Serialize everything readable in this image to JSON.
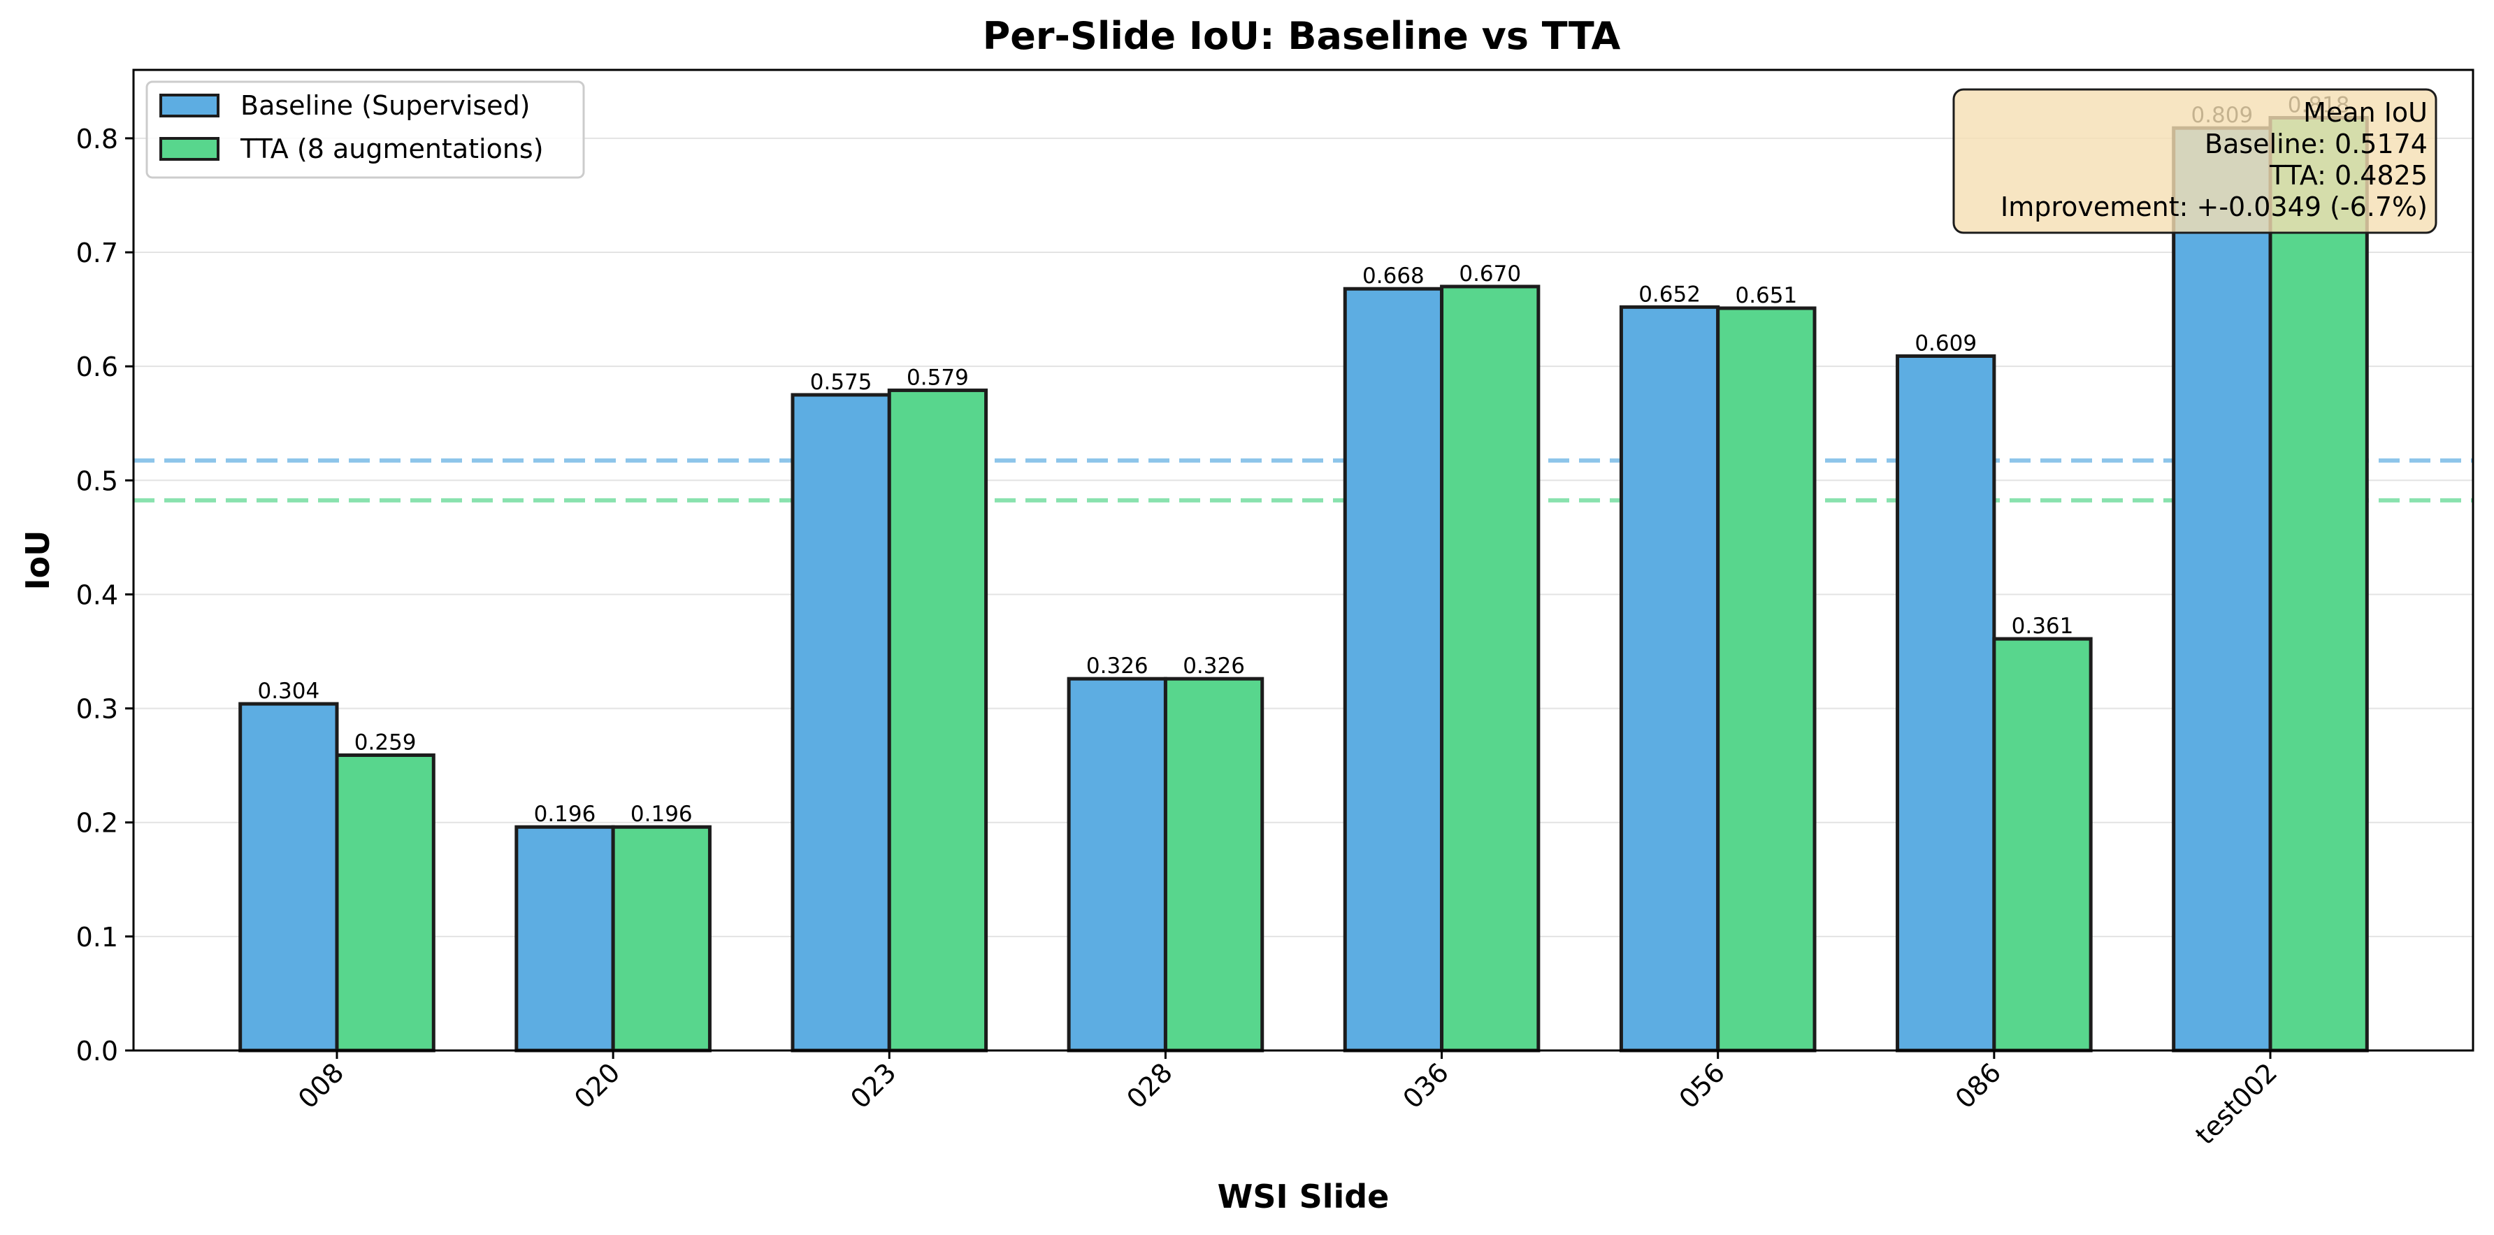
{
  "chart_data": {
    "type": "bar",
    "title": "Per-Slide IoU: Baseline vs TTA",
    "xlabel": "WSI Slide",
    "ylabel": "IoU",
    "ylim": [
      0,
      0.86
    ],
    "yticks": [
      0.0,
      0.1,
      0.2,
      0.3,
      0.4,
      0.5,
      0.6,
      0.7,
      0.8
    ],
    "ytick_labels": [
      "0.0",
      "0.1",
      "0.2",
      "0.3",
      "0.4",
      "0.5",
      "0.6",
      "0.7",
      "0.8"
    ],
    "grid": "horizontal",
    "legend_position": "top-left",
    "categories": [
      "008",
      "020",
      "023",
      "028",
      "036",
      "056",
      "086",
      "test002"
    ],
    "series": [
      {
        "name": "Baseline (Supervised)",
        "color": "#5DADE2",
        "values": [
          0.304,
          0.196,
          0.575,
          0.326,
          0.668,
          0.652,
          0.609,
          0.809
        ],
        "labels": [
          "0.304",
          "0.196",
          "0.575",
          "0.326",
          "0.668",
          "0.652",
          "0.609",
          "0.809"
        ]
      },
      {
        "name": "TTA (8 augmentations)",
        "color": "#58D68D",
        "values": [
          0.259,
          0.196,
          0.579,
          0.326,
          0.67,
          0.651,
          0.361,
          0.818
        ],
        "labels": [
          "0.259",
          "0.196",
          "0.579",
          "0.326",
          "0.670",
          "0.651",
          "0.361",
          "0.818"
        ]
      }
    ],
    "mean_lines": [
      {
        "value": 0.5174,
        "color": "#5DADE2"
      },
      {
        "value": 0.4825,
        "color": "#58D68D"
      }
    ],
    "annotation": {
      "lines": [
        "Mean IoU",
        "Baseline: 0.5174",
        "TTA: 0.4825",
        "Improvement: +-0.0349 (-6.7%)"
      ],
      "background": "#F5DEB3",
      "position": "top-right"
    }
  }
}
